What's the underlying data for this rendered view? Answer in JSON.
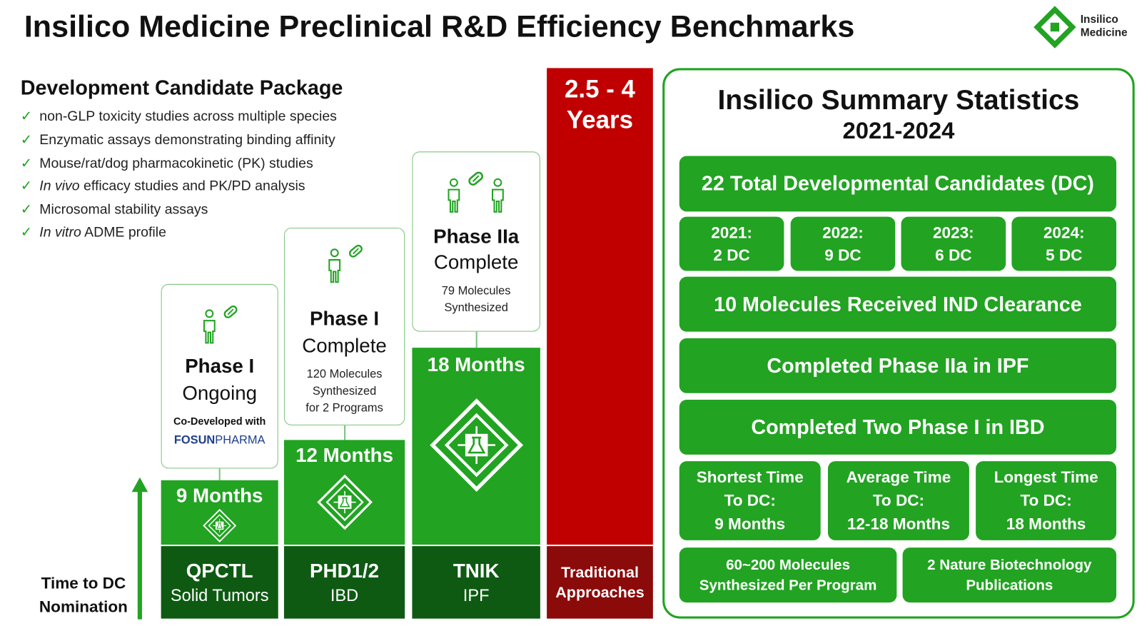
{
  "header": {
    "title": "Insilico Medicine Preclinical R&D Efficiency Benchmarks",
    "logo": [
      "Insilico",
      "Medicine"
    ]
  },
  "package": {
    "title": "Development Candidate Package",
    "items": [
      {
        "text": "non-GLP toxicity studies across multiple species"
      },
      {
        "text": "Enzymatic assays demonstrating binding affinity"
      },
      {
        "text": "Mouse/rat/dog pharmacokinetic (PK) studies"
      },
      {
        "em": "In vivo",
        "text": " efficacy studies and PK/PD analysis"
      },
      {
        "text": "Microsomal stability assays"
      },
      {
        "em": "In vitro",
        "text": " ADME profile"
      }
    ]
  },
  "programs": [
    {
      "phase": "Phase I",
      "status": "Ongoing",
      "note": [
        "Co-Developed with"
      ],
      "partner": [
        "FOSUN",
        "PHARMA"
      ],
      "duration": "9 Months",
      "target": "QPCTL",
      "indication": "Solid Tumors"
    },
    {
      "phase": "Phase I",
      "status": "Complete",
      "note": [
        "120 Molecules",
        "Synthesized",
        "for 2 Programs"
      ],
      "duration": "12 Months",
      "target": "PHD1/2",
      "indication": "IBD"
    },
    {
      "phase": "Phase IIa",
      "status": "Complete",
      "note": [
        "79 Molecules",
        "Synthesized"
      ],
      "duration": "18 Months",
      "target": "TNIK",
      "indication": "IPF"
    }
  ],
  "traditional": {
    "duration": [
      "2.5 - 4",
      "Years"
    ],
    "label": [
      "Traditional",
      "Approaches"
    ]
  },
  "axis_label": [
    "Time to DC",
    "Nomination"
  ],
  "summary": {
    "title": "Insilico Summary Statistics",
    "period": "2021-2024",
    "total": "22 Total Developmental Candidates (DC)",
    "yearly": [
      {
        "year": "2021:",
        "count": "2 DC"
      },
      {
        "year": "2022:",
        "count": "9 DC"
      },
      {
        "year": "2023:",
        "count": "6 DC"
      },
      {
        "year": "2024:",
        "count": "5 DC"
      }
    ],
    "rows": [
      "10 Molecules Received IND Clearance",
      "Completed Phase IIa in IPF",
      "Completed Two Phase I in IBD"
    ],
    "times": [
      [
        "Shortest Time",
        "To DC:",
        "9 Months"
      ],
      [
        "Average Time",
        "To DC:",
        "12-18 Months"
      ],
      [
        "Longest Time",
        "To DC:",
        "18 Months"
      ]
    ],
    "bottom": [
      [
        "60~200 Molecules",
        "Synthesized Per Program"
      ],
      [
        "2 Nature Biotechnology",
        "Publications"
      ]
    ]
  }
}
